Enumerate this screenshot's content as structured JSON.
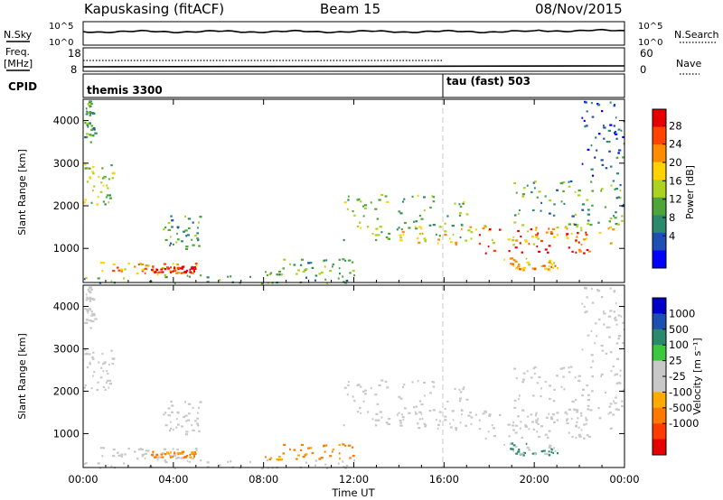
{
  "header": {
    "station": "Kapuskasing (fitACF)",
    "beam": "Beam 15",
    "date": "08/Nov/2015"
  },
  "top_panels": {
    "nsky_label": "N.Sky",
    "nsky_ticks": [
      "10^5",
      "10^0"
    ],
    "nsearch_label": "N.Search",
    "nsearch_ticks": [
      "10^5",
      "10^0"
    ],
    "freq_label_1": "Freq.",
    "freq_label_2": "[MHz]",
    "freq_ticks": [
      "18",
      "8"
    ],
    "nave_label": "Nave",
    "nave_ticks": [
      "60",
      "0"
    ],
    "cpid_label": "CPID",
    "cpid_modes": [
      {
        "label": "themis 3300",
        "start_hour": 0
      },
      {
        "label": "tau (fast) 503",
        "start_hour": 16
      }
    ]
  },
  "power_panel": {
    "ylabel": "Slant Range [km]",
    "yticks": [
      "4000",
      "3000",
      "2000",
      "1000"
    ],
    "colorbar_label": "Power [dB]",
    "colorbar_ticks": [
      "28",
      "24",
      "20",
      "16",
      "12",
      "8",
      "4"
    ],
    "colors": [
      "#0000ff",
      "#1e4fb5",
      "#2b8a6c",
      "#4fa53a",
      "#aad21e",
      "#ffd200",
      "#ff8c00",
      "#ff4500",
      "#e60000"
    ]
  },
  "velocity_panel": {
    "ylabel": "Slant Range [km]",
    "yticks": [
      "4000",
      "3000",
      "2000",
      "1000"
    ],
    "colorbar_label": "Velocity [m s⁻¹]",
    "colorbar_ticks": [
      "1000",
      "500",
      "100",
      "25",
      "-25",
      "-100",
      "-500",
      "-1000"
    ],
    "colors": [
      "#0000c8",
      "#1e50b4",
      "#2b8a6c",
      "#3cc83c",
      "#c8c8c8",
      "#c8c8c8",
      "#ffaa00",
      "#ff7800",
      "#ff3c00",
      "#e60000"
    ]
  },
  "xaxis": {
    "label": "Time UT",
    "ticks": [
      "00:00",
      "04:00",
      "08:00",
      "12:00",
      "16:00",
      "20:00",
      "00:00"
    ]
  },
  "chart_data": {
    "type": "heatmap",
    "x_range_hours": [
      0,
      24
    ],
    "y_range_km": [
      200,
      4500
    ],
    "scatter_regions": [
      {
        "t": [
          0.0,
          0.5
        ],
        "r": [
          3500,
          4500
        ],
        "power_db": 10,
        "velocity": 25
      },
      {
        "t": [
          0.0,
          1.3
        ],
        "r": [
          2000,
          3000
        ],
        "power_db": 14,
        "velocity": 25
      },
      {
        "t": [
          0.7,
          5.0
        ],
        "r": [
          400,
          700
        ],
        "power_db": 20,
        "velocity": 25
      },
      {
        "t": [
          3.0,
          5.0
        ],
        "r": [
          450,
          600
        ],
        "power_db": 28,
        "velocity": -100
      },
      {
        "t": [
          3.5,
          5.2
        ],
        "r": [
          1000,
          1800
        ],
        "power_db": 10,
        "velocity": 25
      },
      {
        "t": [
          0.0,
          12.5
        ],
        "r": [
          200,
          400
        ],
        "power_db": 10,
        "velocity": 25
      },
      {
        "t": [
          8.0,
          12.0
        ],
        "r": [
          400,
          800
        ],
        "power_db": 10,
        "velocity": -100
      },
      {
        "t": [
          11.5,
          17.0
        ],
        "r": [
          1200,
          2300
        ],
        "power_db": 12,
        "velocity": 25
      },
      {
        "t": [
          14.0,
          23.5
        ],
        "r": [
          1100,
          1600
        ],
        "power_db": 18,
        "velocity": 25
      },
      {
        "t": [
          17.5,
          22.5
        ],
        "r": [
          900,
          1500
        ],
        "power_db": 26,
        "velocity": 25
      },
      {
        "t": [
          19.0,
          24.0
        ],
        "r": [
          1500,
          2600
        ],
        "power_db": 10,
        "velocity": 25
      },
      {
        "t": [
          22.0,
          24.0
        ],
        "r": [
          2600,
          4500
        ],
        "power_db": 6,
        "velocity": 25
      },
      {
        "t": [
          18.5,
          21.0
        ],
        "r": [
          500,
          800
        ],
        "power_db": 20,
        "velocity": 100
      }
    ]
  }
}
